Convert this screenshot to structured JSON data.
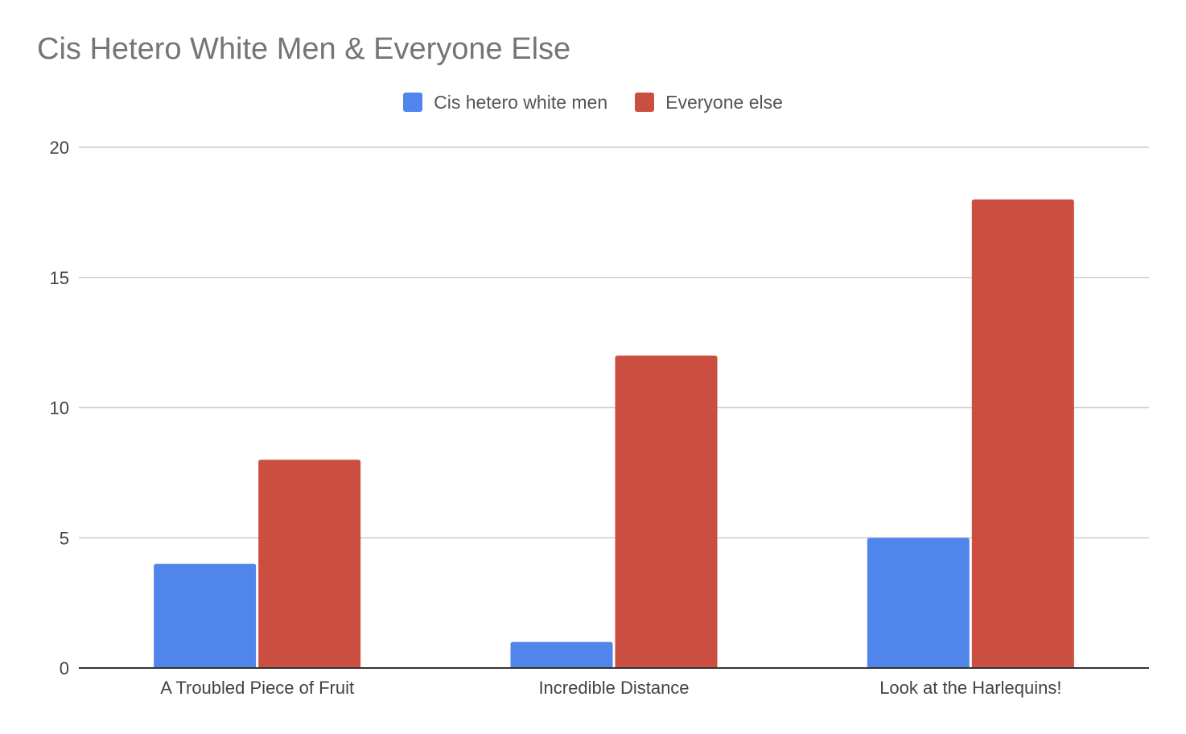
{
  "title": "Cis Hetero White Men & Everyone Else",
  "chart_data": {
    "type": "bar",
    "title": "Cis Hetero White Men & Everyone Else",
    "categories": [
      "A Troubled Piece of Fruit",
      "Incredible Distance",
      "Look at the Harlequins!"
    ],
    "series": [
      {
        "name": "Cis hetero white men",
        "color": "#5085EC",
        "values": [
          4,
          1,
          5
        ]
      },
      {
        "name": "Everyone else",
        "color": "#CA4F40",
        "values": [
          8,
          12,
          18
        ]
      }
    ],
    "xlabel": "",
    "ylabel": "",
    "ylim": [
      0,
      20
    ],
    "yticks": [
      "0",
      "5",
      "10",
      "15",
      "20"
    ],
    "grid": true,
    "legend_position": "top-center"
  }
}
